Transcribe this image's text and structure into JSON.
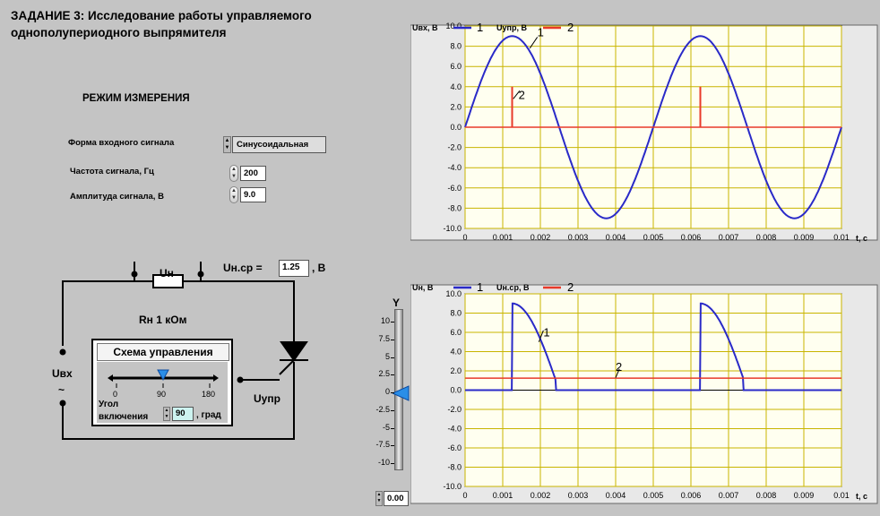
{
  "title": {
    "line1": "ЗАДАНИЕ 3: Исследование работы управляемого",
    "line2": "однополупериодного выпрямителя"
  },
  "mode": {
    "heading": "РЕЖИМ ИЗМЕРЕНИЯ",
    "signal_form_label": "Форма входного сигнала",
    "signal_form_value": "Синусоидальная",
    "frequency_label": "Частота сигнала, Гц",
    "frequency_value": "200",
    "amplitude_label": "Амплитуда сигнала, В",
    "amplitude_value": "9.0"
  },
  "circuit": {
    "un_label": "Uн",
    "rn_label": "Rн 1 кОм",
    "uncp_label": "Uн.ср =",
    "uncp_value": "1.25",
    "uncp_unit": ", В",
    "ubx_label": "Uвх",
    "tilde": "~",
    "uypr_label": "Uупр",
    "control_title": "Схема управления",
    "slider_ticks": [
      "0",
      "90",
      "180"
    ],
    "slider_value": 90,
    "angle_label_1": "Угол",
    "angle_label_2": "включения",
    "angle_value": "90",
    "angle_unit": ", град"
  },
  "y_slider": {
    "label": "Y",
    "ticks": [
      "10",
      "7.5",
      "5",
      "2.5",
      "0",
      "-2.5",
      "-5",
      "-7.5",
      "-10"
    ],
    "value": 0,
    "readout": "0.00"
  },
  "colors": {
    "series1": "#2a2ac8",
    "series2": "#e83a2a",
    "grid": "#c8b400",
    "plot_bg": "#fffff0"
  },
  "chart_data": [
    {
      "type": "line",
      "legend": [
        {
          "label": "Uвх, В",
          "num": "1"
        },
        {
          "label": "Uупр, В",
          "num": "2"
        }
      ],
      "annotations": [
        "1",
        "2"
      ],
      "xlabel": "t, с",
      "x_ticks": [
        "0",
        "0.001",
        "0.002",
        "0.003",
        "0.004",
        "0.005",
        "0.006",
        "0.007",
        "0.008",
        "0.009",
        "0.01"
      ],
      "y_ticks": [
        "10.0",
        "8.0",
        "6.0",
        "4.0",
        "2.0",
        "0.0",
        "-2.0",
        "-4.0",
        "-6.0",
        "-8.0",
        "-10.0"
      ],
      "xlim": [
        0,
        0.01
      ],
      "ylim": [
        -10,
        10
      ],
      "series": [
        {
          "kind": "sine",
          "amplitude": 9.0,
          "frequency": 200
        },
        {
          "kind": "pulses",
          "times": [
            0.00125,
            0.00625
          ],
          "height": 4.0
        }
      ]
    },
    {
      "type": "line",
      "legend": [
        {
          "label": "Uн, В",
          "num": "1"
        },
        {
          "label": "Uн.ср, В",
          "num": "2"
        }
      ],
      "annotations": [
        "1",
        "2"
      ],
      "xlabel": "t, с",
      "x_ticks": [
        "0",
        "0.001",
        "0.002",
        "0.003",
        "0.004",
        "0.005",
        "0.006",
        "0.007",
        "0.008",
        "0.009",
        "0.01"
      ],
      "y_ticks": [
        "10.0",
        "8.0",
        "6.0",
        "4.0",
        "2.0",
        "0.0",
        "-2.0",
        "-4.0",
        "-6.0",
        "-8.0",
        "-10.0"
      ],
      "xlim": [
        0,
        0.01
      ],
      "ylim": [
        -10,
        10
      ],
      "series": [
        {
          "kind": "rectified",
          "amplitude": 9.0,
          "frequency": 200,
          "firing_angle_deg": 90,
          "end_time_in_period": 0.0024
        },
        {
          "kind": "constant",
          "value": 1.25
        }
      ]
    }
  ]
}
